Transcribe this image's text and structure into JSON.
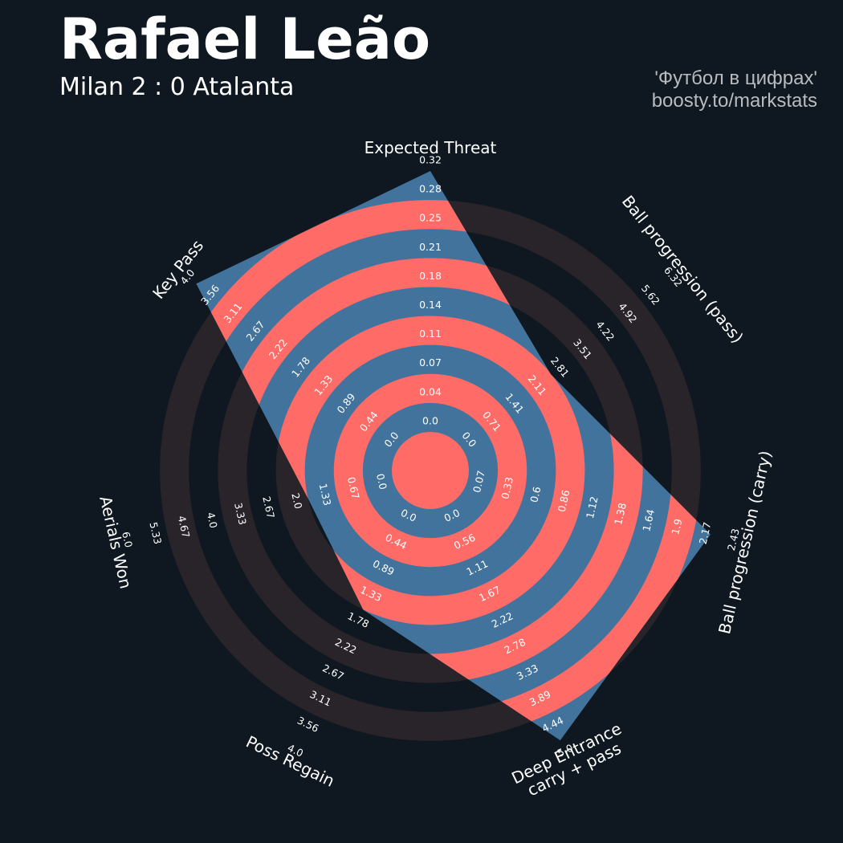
{
  "header": {
    "title": "Rafael Leão",
    "subtitle": "Milan 2 : 0 Atalanta",
    "credit_line1": "'Футбол в цифрах'",
    "credit_line2": "boosty.to/markstats"
  },
  "colors": {
    "background": "#0f1820",
    "ring_dark": "#28242a",
    "ring_highlight": "#ff6b67",
    "player_fill": "#42739d"
  },
  "chart_data": {
    "type": "radar",
    "params": [
      {
        "label": [
          "Expected Threat"
        ],
        "ticks": [
          "0.0",
          "0.04",
          "0.07",
          "0.11",
          "0.14",
          "0.18",
          "0.21",
          "0.25",
          "0.28",
          "0.32"
        ],
        "value": 0.32,
        "min": 0.0,
        "max": 0.32
      },
      {
        "label": [
          "Ball progression (pass)"
        ],
        "ticks": [
          "0.0",
          "0.71",
          "1.41",
          "2.11",
          "2.81",
          "3.51",
          "4.22",
          "4.92",
          "5.62",
          "6.32"
        ],
        "value": 2.8,
        "min": 0.0,
        "max": 6.32
      },
      {
        "label": [
          "Ball progression (carry)"
        ],
        "ticks": [
          "0.07",
          "0.33",
          "0.6",
          "0.86",
          "1.12",
          "1.38",
          "1.64",
          "1.9",
          "2.17",
          "2.43"
        ],
        "value": 2.32,
        "min": 0.07,
        "max": 2.43
      },
      {
        "label": [
          "Deep Entrance",
          "carry + pass"
        ],
        "ticks": [
          "0.0",
          "0.56",
          "1.11",
          "1.67",
          "2.22",
          "2.78",
          "3.33",
          "3.89",
          "4.44",
          "5.0"
        ],
        "value": 5.0,
        "min": 0.0,
        "max": 5.0
      },
      {
        "label": [
          "Poss Regain"
        ],
        "ticks": [
          "0.0",
          "0.44",
          "0.89",
          "1.33",
          "1.78",
          "2.22",
          "2.67",
          "3.11",
          "3.56",
          "4.0"
        ],
        "value": 1.78,
        "min": 0.0,
        "max": 4.0
      },
      {
        "label": [
          "Aerials Won"
        ],
        "ticks": [
          "0.0",
          "0.67",
          "1.33",
          "2.0",
          "2.67",
          "3.33",
          "4.0",
          "4.67",
          "5.33",
          "6.0"
        ],
        "value": 2.0,
        "min": 0.0,
        "max": 6.0
      },
      {
        "label": [
          "Key Pass"
        ],
        "ticks": [
          "0.0",
          "0.44",
          "0.89",
          "1.33",
          "1.78",
          "2.22",
          "2.67",
          "3.11",
          "3.56",
          "4.0"
        ],
        "value": 4.0,
        "min": 0.0,
        "max": 4.0
      }
    ]
  }
}
